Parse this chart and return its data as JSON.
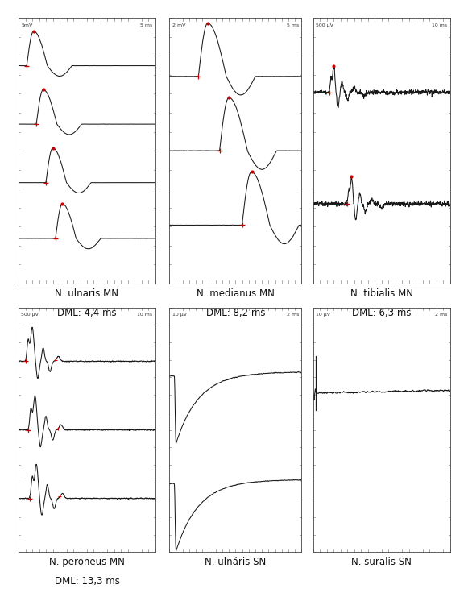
{
  "background_color": "#ffffff",
  "signal_color": "#1a1a1a",
  "marker_color": "#cc0000",
  "label_color": "#111111",
  "panels": [
    {
      "id": "ulnaris_mn",
      "col": 0,
      "row": 0,
      "label_line1": "N. ulnaris MN",
      "label_line2": "DML: 4,4 ms",
      "scale_left": "5mV",
      "scale_right": "5 ms",
      "n_traces": 4,
      "trace_type": "ulnaris_mn"
    },
    {
      "id": "medianus_mn",
      "col": 1,
      "row": 0,
      "label_line1": "N. medianus MN",
      "label_line2": "DML: 8,2 ms",
      "scale_left": "2 mV",
      "scale_right": "5 ms",
      "n_traces": 3,
      "trace_type": "medianus_mn"
    },
    {
      "id": "tibialis_mn",
      "col": 2,
      "row": 0,
      "label_line1": "N. tibialis MN",
      "label_line2": "DML: 6,3 ms",
      "scale_left": "500 μV",
      "scale_right": "10 ms",
      "n_traces": 2,
      "trace_type": "tibialis_mn"
    },
    {
      "id": "peroneus_mn",
      "col": 0,
      "row": 1,
      "label_line1": "N. peroneus MN",
      "label_line2": "DML: 13,3 ms",
      "scale_left": "500 μV",
      "scale_right": "10 ms",
      "n_traces": 3,
      "trace_type": "peroneus_mn"
    },
    {
      "id": "ulnaris_sn",
      "col": 1,
      "row": 1,
      "label_line1": "N. ulnáris SN",
      "label_line2": "",
      "scale_left": "10 μV",
      "scale_right": "2 ms",
      "n_traces": 2,
      "trace_type": "ulnaris_sn"
    },
    {
      "id": "suralis_sn",
      "col": 2,
      "row": 1,
      "label_line1": "N. suralis SN",
      "label_line2": "",
      "scale_left": "10 μV",
      "scale_right": "2 ms",
      "n_traces": 1,
      "trace_type": "suralis_sn"
    }
  ]
}
